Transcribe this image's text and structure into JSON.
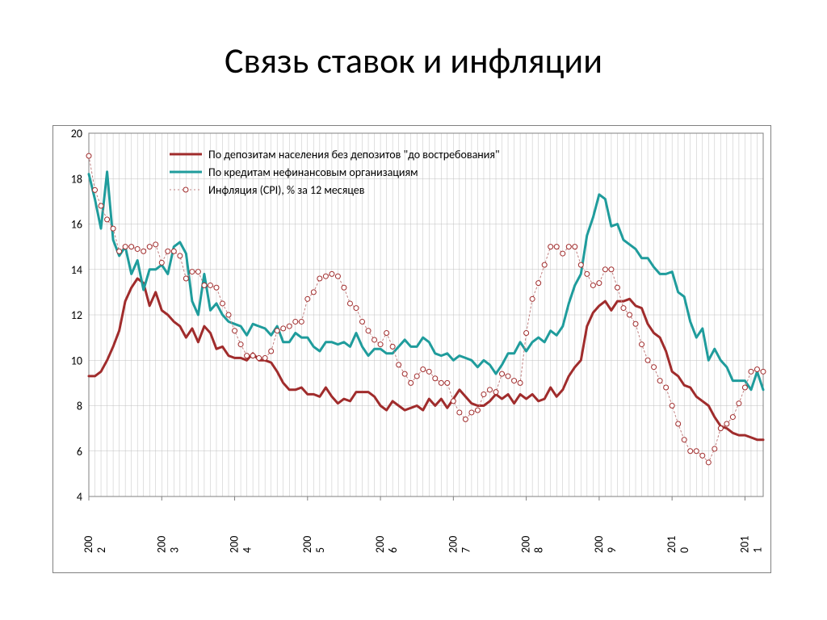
{
  "title": "Связь ставок и инфляции",
  "chart": {
    "type": "line",
    "background_color": "#ffffff",
    "border_color": "#808080",
    "grid_color": "#c0c0c0",
    "title_fontsize": 44,
    "label_fontsize": 14,
    "ylim": [
      4,
      20
    ],
    "ytick_step": 2,
    "yticks": [
      4,
      6,
      8,
      10,
      12,
      14,
      16,
      18,
      20
    ],
    "x_count": 112,
    "xtick_labels": [
      "2002",
      "2003",
      "2004",
      "2005",
      "2006",
      "2007",
      "2008",
      "2009",
      "2010",
      "2011"
    ],
    "xtick_positions": [
      0,
      12,
      24,
      36,
      48,
      60,
      72,
      84,
      96,
      108
    ],
    "legend_position": "top-left-inside",
    "series": [
      {
        "id": "deposits",
        "label": "По депозитам населения без депозитов \"до востребования\"",
        "color": "#a02c2c",
        "line_width": 3,
        "marker": "none",
        "values": [
          9.3,
          9.3,
          9.5,
          10.0,
          10.6,
          11.3,
          12.6,
          13.2,
          13.6,
          13.4,
          12.4,
          13.0,
          12.2,
          12.0,
          11.7,
          11.5,
          11.0,
          11.4,
          10.8,
          11.5,
          11.2,
          10.5,
          10.6,
          10.2,
          10.1,
          10.1,
          10.0,
          10.3,
          10.0,
          10.0,
          9.9,
          9.5,
          9.0,
          8.7,
          8.7,
          8.8,
          8.5,
          8.5,
          8.4,
          8.8,
          8.4,
          8.1,
          8.3,
          8.2,
          8.6,
          8.6,
          8.6,
          8.4,
          8.0,
          7.8,
          8.2,
          8.0,
          7.8,
          7.9,
          8.0,
          7.8,
          8.3,
          8.0,
          8.3,
          7.9,
          8.3,
          8.7,
          8.4,
          8.1,
          8.0,
          8.0,
          8.2,
          8.5,
          8.3,
          8.5,
          8.1,
          8.5,
          8.3,
          8.5,
          8.2,
          8.3,
          8.8,
          8.4,
          8.7,
          9.3,
          9.7,
          10.0,
          11.5,
          12.1,
          12.4,
          12.6,
          12.2,
          12.6,
          12.6,
          12.7,
          12.4,
          12.3,
          11.6,
          11.2,
          11.0,
          10.4,
          9.5,
          9.3,
          8.9,
          8.8,
          8.4,
          8.2,
          8.0,
          7.5,
          7.1,
          7.0,
          6.8,
          6.7,
          6.7,
          6.6,
          6.5,
          6.5
        ]
      },
      {
        "id": "credits",
        "label": "По кредитам нефинансовым организациям",
        "color": "#1f9c9c",
        "line_width": 3,
        "marker": "none",
        "values": [
          18.2,
          17.1,
          15.8,
          18.3,
          15.3,
          14.6,
          15.0,
          13.8,
          14.4,
          13.1,
          14.0,
          14.0,
          14.2,
          13.8,
          15.0,
          15.2,
          14.7,
          12.6,
          12.0,
          13.8,
          12.2,
          12.5,
          12.0,
          11.7,
          11.6,
          11.5,
          11.1,
          11.6,
          11.5,
          11.4,
          11.1,
          11.5,
          10.8,
          10.8,
          11.2,
          11.0,
          11.0,
          10.6,
          10.4,
          10.8,
          10.8,
          10.7,
          10.8,
          10.6,
          11.2,
          10.6,
          10.2,
          10.5,
          10.5,
          10.3,
          10.3,
          10.6,
          10.9,
          10.6,
          10.6,
          11.0,
          10.8,
          10.3,
          10.2,
          10.3,
          10.0,
          10.2,
          10.1,
          10.0,
          9.7,
          10.0,
          9.8,
          9.4,
          9.8,
          10.3,
          10.3,
          10.8,
          10.4,
          10.8,
          11.0,
          10.8,
          11.3,
          11.1,
          11.5,
          12.5,
          13.3,
          13.8,
          15.5,
          16.3,
          17.3,
          17.1,
          15.9,
          16.0,
          15.3,
          15.1,
          14.9,
          14.5,
          14.5,
          14.1,
          13.8,
          13.8,
          13.9,
          13.0,
          12.8,
          11.7,
          11.0,
          11.4,
          10.0,
          10.5,
          10.0,
          9.7,
          9.1,
          9.1,
          9.1,
          8.7,
          9.5,
          8.7
        ]
      },
      {
        "id": "cpi",
        "label": "Инфляция (CPI), % за 12 месяцев",
        "color": "#c08080",
        "line_width": 1,
        "marker": "circle",
        "marker_size": 4,
        "marker_stroke": "#a02c2c",
        "marker_fill": "#ffffff",
        "dash": "2,3",
        "values": [
          19.0,
          17.5,
          16.8,
          16.2,
          15.8,
          14.8,
          15.0,
          15.0,
          14.9,
          14.8,
          15.0,
          15.1,
          14.3,
          14.8,
          14.8,
          14.6,
          13.6,
          13.9,
          13.9,
          13.3,
          13.3,
          13.2,
          12.5,
          12.0,
          11.3,
          10.7,
          10.2,
          10.2,
          10.1,
          10.1,
          10.4,
          11.3,
          11.4,
          11.5,
          11.7,
          11.7,
          12.7,
          13.0,
          13.6,
          13.7,
          13.8,
          13.7,
          13.2,
          12.5,
          12.3,
          11.7,
          11.3,
          10.9,
          10.7,
          11.2,
          10.6,
          9.8,
          9.4,
          9.0,
          9.3,
          9.6,
          9.5,
          9.2,
          9.0,
          9.0,
          8.2,
          7.7,
          7.4,
          7.7,
          7.8,
          8.5,
          8.7,
          8.6,
          9.4,
          9.3,
          9.1,
          9.0,
          11.2,
          12.7,
          13.4,
          14.2,
          15.0,
          15.0,
          14.7,
          15.0,
          15.0,
          14.2,
          13.8,
          13.3,
          13.4,
          14.0,
          14.0,
          13.2,
          12.3,
          12.0,
          11.6,
          10.7,
          10.0,
          9.7,
          9.1,
          8.8,
          8.0,
          7.2,
          6.5,
          6.0,
          6.0,
          5.8,
          5.5,
          6.1,
          7.0,
          7.2,
          7.5,
          8.1,
          8.8,
          9.5,
          9.6,
          9.5
        ]
      }
    ]
  }
}
